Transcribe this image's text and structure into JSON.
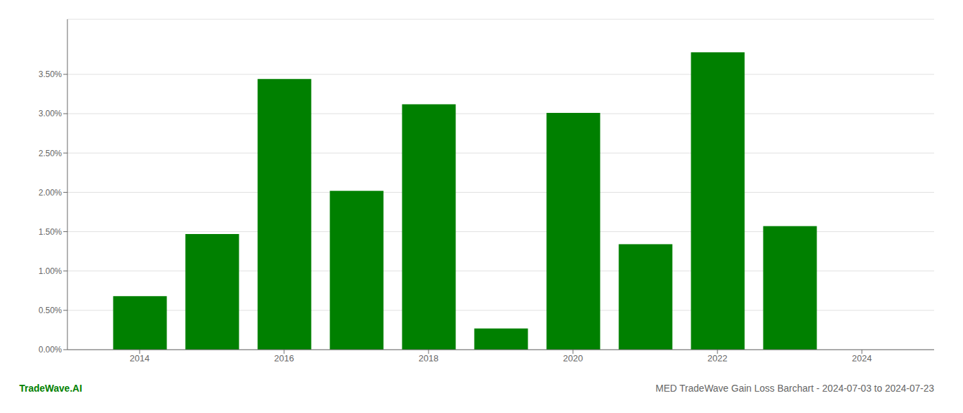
{
  "chart_data": {
    "type": "bar",
    "title": "MED TradeWave Gain Loss Barchart - 2024-07-03 to 2024-07-23",
    "annotations": [
      "TradeWave.AI"
    ],
    "x": [
      2014,
      2015,
      2016,
      2017,
      2018,
      2019,
      2020,
      2021,
      2022,
      2023,
      2024
    ],
    "values": [
      0.0068,
      0.0147,
      0.0344,
      0.0202,
      0.0312,
      0.0027,
      0.0301,
      0.0134,
      0.0378,
      0.0157,
      0.0
    ],
    "color": "#008000",
    "xlim": [
      2013,
      2025
    ],
    "xticks": [
      2014,
      2016,
      2018,
      2020,
      2022,
      2024
    ],
    "ylim": [
      0,
      0.042
    ],
    "yticks": [
      {
        "value": 0.0,
        "label": "0.00%"
      },
      {
        "value": 0.005,
        "label": "0.50%"
      },
      {
        "value": 0.01,
        "label": "1.00%"
      },
      {
        "value": 0.015,
        "label": "1.50%"
      },
      {
        "value": 0.02,
        "label": "2.00%"
      },
      {
        "value": 0.025,
        "label": "2.50%"
      },
      {
        "value": 0.03,
        "label": "3.00%"
      },
      {
        "value": 0.035,
        "label": "3.50%"
      }
    ],
    "grid": "y"
  }
}
